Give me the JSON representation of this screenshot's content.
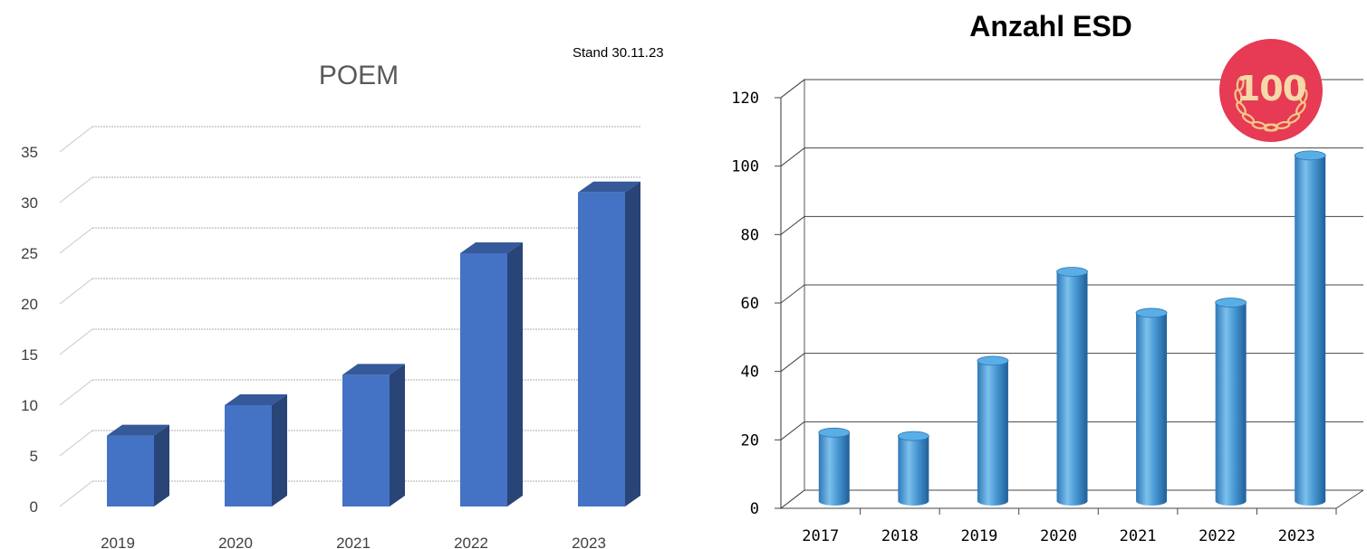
{
  "note": "Stand 30.11.23",
  "badge": {
    "text": "100",
    "color": "#e63a55",
    "laurel_color": "#f3c987"
  },
  "chart_data": [
    {
      "type": "bar",
      "style": "3d-box",
      "title": "POEM",
      "categories": [
        "2019",
        "2020",
        "2021",
        "2022",
        "2023"
      ],
      "values": [
        7,
        10,
        13,
        25,
        31
      ],
      "ylim": [
        0,
        35
      ],
      "yticks": [
        0,
        5,
        10,
        15,
        20,
        25,
        30,
        35
      ],
      "xlabel": "",
      "ylabel": "",
      "grid": true,
      "legend": "none",
      "bar_color": "#4472c4"
    },
    {
      "type": "bar",
      "style": "3d-cylinder",
      "title": "Anzahl ESD",
      "categories": [
        "2017",
        "2018",
        "2019",
        "2020",
        "2021",
        "2022",
        "2023"
      ],
      "values": [
        20,
        19,
        41,
        67,
        55,
        58,
        101
      ],
      "ylim": [
        0,
        120
      ],
      "yticks": [
        0,
        20,
        40,
        60,
        80,
        100,
        120
      ],
      "xlabel": "",
      "ylabel": "",
      "grid": true,
      "legend": "none",
      "bar_color": "#4a9ad4"
    }
  ]
}
